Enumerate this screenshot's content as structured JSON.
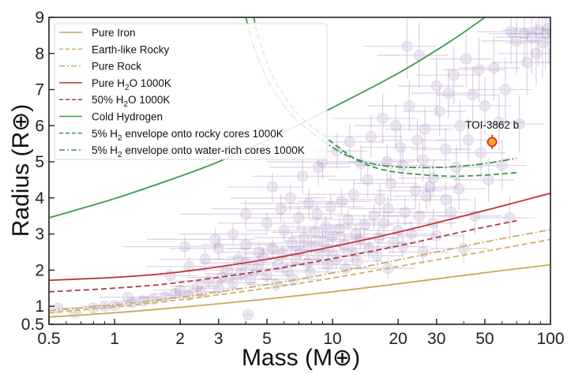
{
  "chart_data": {
    "type": "scatter",
    "title": "",
    "xlabel": "Mass (M⊕)",
    "ylabel": "Radius (R⊕)",
    "xscale": "log",
    "yscale": "linear",
    "xlim": [
      0.5,
      100
    ],
    "ylim": [
      0.5,
      9
    ],
    "grid": false,
    "legend_position": "top-left",
    "xticks": [
      {
        "value": 0.5,
        "label": "0.5"
      },
      {
        "value": 1,
        "label": "1"
      },
      {
        "value": 2,
        "label": "2"
      },
      {
        "value": 3,
        "label": "3"
      },
      {
        "value": 5,
        "label": "5"
      },
      {
        "value": 10,
        "label": "10"
      },
      {
        "value": 20,
        "label": "20"
      },
      {
        "value": 30,
        "label": "30"
      },
      {
        "value": 50,
        "label": "50"
      },
      {
        "value": 100,
        "label": "100"
      }
    ],
    "xminor_ticks": [
      0.6,
      0.7,
      0.8,
      0.9,
      4,
      6,
      7,
      8,
      9,
      40,
      60,
      70,
      80,
      90
    ],
    "yticks": [
      {
        "value": 0.5,
        "label": "0.5"
      },
      {
        "value": 1,
        "label": "1"
      },
      {
        "value": 2,
        "label": "2"
      },
      {
        "value": 3,
        "label": "3"
      },
      {
        "value": 4,
        "label": "4"
      },
      {
        "value": 5,
        "label": "5"
      },
      {
        "value": 6,
        "label": "6"
      },
      {
        "value": 7,
        "label": "7"
      },
      {
        "value": 8,
        "label": "8"
      },
      {
        "value": 9,
        "label": "9"
      }
    ],
    "models": [
      {
        "name": "Pure Iron",
        "legend_main": "Pure Iron",
        "legend_sub": "",
        "legend_tail": "",
        "color": "#c8a85a",
        "dash": "solid",
        "x": [
          0.5,
          1,
          2,
          5,
          10,
          20,
          50,
          100
        ],
        "y": [
          0.7,
          0.82,
          0.97,
          1.2,
          1.4,
          1.62,
          1.93,
          2.15
        ]
      },
      {
        "name": "Earth-like Rocky",
        "legend_main": "Earth-like Rocky",
        "legend_sub": "",
        "legend_tail": "",
        "color": "#d0b060",
        "dash": "dashed",
        "x": [
          0.5,
          1,
          2,
          5,
          10,
          20,
          50,
          100
        ],
        "y": [
          0.82,
          0.98,
          1.18,
          1.5,
          1.78,
          2.1,
          2.52,
          2.85
        ]
      },
      {
        "name": "Pure Rock",
        "legend_main": "Pure Rock",
        "legend_sub": "",
        "legend_tail": "",
        "color": "#c8ad62",
        "dash": "dashdot",
        "x": [
          0.5,
          1,
          2,
          5,
          10,
          20,
          50,
          100
        ],
        "y": [
          0.88,
          1.04,
          1.25,
          1.6,
          1.92,
          2.28,
          2.78,
          3.12
        ]
      },
      {
        "name": "Pure H2O 1000K",
        "legend_main": "Pure H",
        "legend_sub": "2",
        "legend_tail": "O 1000K",
        "color": "#c0343c",
        "dash": "solid",
        "x": [
          0.5,
          1,
          2,
          5,
          10,
          20,
          50,
          100
        ],
        "y": [
          1.72,
          1.8,
          1.95,
          2.3,
          2.65,
          3.05,
          3.65,
          4.13
        ]
      },
      {
        "name": "50% H2O 1000K",
        "legend_main": "50% H",
        "legend_sub": "2",
        "legend_tail": "O 1000K",
        "color": "#b23a48",
        "dash": "dashed",
        "x": [
          0.5,
          1,
          2,
          5,
          10,
          20,
          40,
          70
        ],
        "y": [
          1.4,
          1.5,
          1.66,
          2.0,
          2.32,
          2.67,
          3.07,
          3.37
        ]
      },
      {
        "name": "Cold Hydrogen",
        "legend_main": "Cold Hydrogen",
        "legend_sub": "",
        "legend_tail": "",
        "color": "#3a9a4c",
        "dash": "solid",
        "x": [
          0.5,
          1,
          2,
          3,
          5,
          10,
          20,
          35,
          50
        ],
        "y": [
          3.45,
          3.98,
          4.6,
          5.0,
          5.6,
          6.5,
          7.45,
          8.35,
          9.0
        ]
      },
      {
        "name": "5% H2 envelope onto rocky cores 1000K",
        "legend_main": "5% H",
        "legend_sub": "2",
        "legend_tail": " envelope onto rocky cores 1000K",
        "color": "#3a9a4c",
        "dash": "dashed",
        "x": [
          4.35,
          4.7,
          5.5,
          7,
          9,
          11.5,
          14,
          18,
          25,
          35,
          50,
          70
        ],
        "y": [
          9.0,
          8.2,
          7.2,
          6.3,
          5.75,
          5.25,
          4.95,
          4.75,
          4.65,
          4.6,
          4.63,
          4.7
        ]
      },
      {
        "name": "5% H2 envelope onto water-rich cores 1000K",
        "legend_main": "5% H",
        "legend_sub": "2",
        "legend_tail": " envelope onto water-rich cores 1000K",
        "color": "#3a9a4c",
        "dash": "dashdot",
        "x": [
          4.0,
          4.35,
          5.1,
          6.5,
          8.5,
          11,
          14,
          18,
          25,
          35,
          50,
          70
        ],
        "y": [
          9.0,
          8.2,
          7.2,
          6.3,
          5.7,
          5.25,
          5.0,
          4.88,
          4.84,
          4.86,
          4.95,
          5.1
        ]
      }
    ],
    "highlight": {
      "label": "TOI-3862 b",
      "mass": 54,
      "mass_err": 3,
      "radius": 5.55,
      "radius_err": 0.2,
      "face_color": "#f5a623",
      "edge_color": "#e0201e"
    },
    "background_planets": {
      "color": "#9b7bb8",
      "points": [
        [
          0.66,
          0.82,
          0.05,
          0.05
        ],
        [
          0.8,
          0.95,
          0.15,
          0.1
        ],
        [
          0.9,
          1.0,
          0.2,
          0.1
        ],
        [
          1.0,
          1.02,
          0.2,
          0.1
        ],
        [
          1.2,
          1.1,
          0.2,
          0.1
        ],
        [
          1.35,
          1.15,
          0.3,
          0.1
        ],
        [
          1.5,
          1.2,
          0.3,
          0.15
        ],
        [
          1.7,
          1.25,
          0.4,
          0.1
        ],
        [
          1.9,
          1.35,
          0.4,
          0.15
        ],
        [
          2.0,
          1.45,
          0.5,
          0.15
        ],
        [
          2.2,
          1.3,
          0.5,
          0.15
        ],
        [
          2.4,
          1.55,
          0.6,
          0.2
        ],
        [
          2.5,
          1.4,
          0.6,
          0.15
        ],
        [
          2.7,
          1.7,
          0.8,
          0.2
        ],
        [
          3.0,
          1.5,
          0.8,
          0.2
        ],
        [
          3.1,
          1.8,
          1.0,
          0.2
        ],
        [
          3.3,
          2.0,
          1.2,
          0.2
        ],
        [
          3.5,
          1.65,
          1.0,
          0.2
        ],
        [
          3.8,
          1.9,
          1.2,
          0.2
        ],
        [
          4.0,
          2.2,
          1.5,
          0.25
        ],
        [
          4.2,
          1.75,
          1.2,
          0.2
        ],
        [
          4.5,
          2.05,
          1.5,
          0.2
        ],
        [
          4.8,
          2.35,
          1.5,
          0.25
        ],
        [
          5.0,
          1.85,
          1.5,
          0.2
        ],
        [
          5.3,
          2.6,
          2.0,
          0.25
        ],
        [
          5.6,
          2.15,
          1.8,
          0.2
        ],
        [
          5.9,
          2.45,
          2.0,
          0.25
        ],
        [
          6.2,
          2.0,
          2.0,
          0.2
        ],
        [
          6.5,
          2.75,
          2.5,
          0.3
        ],
        [
          6.8,
          2.3,
          2.0,
          0.25
        ],
        [
          7.1,
          2.55,
          2.5,
          0.25
        ],
        [
          7.4,
          2.9,
          3.0,
          0.3
        ],
        [
          7.7,
          2.2,
          2.0,
          0.25
        ],
        [
          8.0,
          2.65,
          3.0,
          0.25
        ],
        [
          8.3,
          3.05,
          3.0,
          0.3
        ],
        [
          8.6,
          2.4,
          2.5,
          0.25
        ],
        [
          9.0,
          2.8,
          3.0,
          0.3
        ],
        [
          9.3,
          3.2,
          3.0,
          0.3
        ],
        [
          9.6,
          2.55,
          3.0,
          0.25
        ],
        [
          10.0,
          2.95,
          3.5,
          0.3
        ],
        [
          10.4,
          2.3,
          3.0,
          0.25
        ],
        [
          10.8,
          3.15,
          4.0,
          0.3
        ],
        [
          11.3,
          2.7,
          4.0,
          0.3
        ],
        [
          11.8,
          3.4,
          4.0,
          0.3
        ],
        [
          12.3,
          2.5,
          4.0,
          0.3
        ],
        [
          12.8,
          3.0,
          4.0,
          0.3
        ],
        [
          13.4,
          2.85,
          4.0,
          0.3
        ],
        [
          14.0,
          3.25,
          5.0,
          0.3
        ],
        [
          14.7,
          2.6,
          4.0,
          0.3
        ],
        [
          15.5,
          3.5,
          5.0,
          0.35
        ],
        [
          16.3,
          2.9,
          5.0,
          0.3
        ],
        [
          17.2,
          3.3,
          6.0,
          0.35
        ],
        [
          18.0,
          3.7,
          6.0,
          0.4
        ],
        [
          19.0,
          2.75,
          6.0,
          0.3
        ],
        [
          20.0,
          3.1,
          6.0,
          0.35
        ],
        [
          21.5,
          3.6,
          7.0,
          0.4
        ],
        [
          23.0,
          3.0,
          7.0,
          0.35
        ],
        [
          25.0,
          3.5,
          8.0,
          0.4
        ],
        [
          27.0,
          4.05,
          8.0,
          0.4
        ],
        [
          29.0,
          3.3,
          8.0,
          0.4
        ],
        [
          8.5,
          3.55,
          3.0,
          0.3
        ],
        [
          7.0,
          3.45,
          3.0,
          0.3
        ],
        [
          6.0,
          3.1,
          2.0,
          0.3
        ],
        [
          5.0,
          3.3,
          2.0,
          0.3
        ],
        [
          4.0,
          2.7,
          1.5,
          0.3
        ],
        [
          3.5,
          3.0,
          1.5,
          0.3
        ],
        [
          3.0,
          2.6,
          1.2,
          0.3
        ],
        [
          2.6,
          2.3,
          1.0,
          0.3
        ],
        [
          2.2,
          2.1,
          0.8,
          0.25
        ],
        [
          1.8,
          1.85,
          0.6,
          0.2
        ],
        [
          9.8,
          3.75,
          4.0,
          0.35
        ],
        [
          11.0,
          3.9,
          4.0,
          0.35
        ],
        [
          12.5,
          4.1,
          5.0,
          0.4
        ],
        [
          6.4,
          4.0,
          3.0,
          0.4
        ],
        [
          5.3,
          4.3,
          2.0,
          0.4
        ],
        [
          4.0,
          3.55,
          2.0,
          0.4
        ],
        [
          5.8,
          3.7,
          3.0,
          0.4
        ],
        [
          7.8,
          3.85,
          4.0,
          0.4
        ],
        [
          14.5,
          4.5,
          5.0,
          0.5
        ],
        [
          16.5,
          3.95,
          6.0,
          0.45
        ],
        [
          18.5,
          4.4,
          6.0,
          0.5
        ],
        [
          21.0,
          4.9,
          8.0,
          0.5
        ],
        [
          24.0,
          4.2,
          8.0,
          0.5
        ],
        [
          26.0,
          5.05,
          9.0,
          0.6
        ],
        [
          29.0,
          4.55,
          9.0,
          0.5
        ],
        [
          33.0,
          5.35,
          10.0,
          0.6
        ],
        [
          37.0,
          4.85,
          12.0,
          0.6
        ],
        [
          42.0,
          5.6,
          12.0,
          0.6
        ],
        [
          48.0,
          5.25,
          14.0,
          0.7
        ],
        [
          60.0,
          4.9,
          18.0,
          0.7
        ],
        [
          65.0,
          3.45,
          20.0,
          0.6
        ],
        [
          45.0,
          3.5,
          15.0,
          0.5
        ],
        [
          33.0,
          3.95,
          10.0,
          0.5
        ],
        [
          38.0,
          4.25,
          12.0,
          0.6
        ],
        [
          52.0,
          4.5,
          16.0,
          0.6
        ],
        [
          15.0,
          5.7,
          6.0,
          0.6
        ],
        [
          17.0,
          6.2,
          7.0,
          0.7
        ],
        [
          19.5,
          6.0,
          7.0,
          0.6
        ],
        [
          22.5,
          6.55,
          8.0,
          0.7
        ],
        [
          26.5,
          5.9,
          9.0,
          0.6
        ],
        [
          31.0,
          6.4,
          10.0,
          0.7
        ],
        [
          34.0,
          6.9,
          11.0,
          0.7
        ],
        [
          38.5,
          6.0,
          12.0,
          0.7
        ],
        [
          44.0,
          6.85,
          14.0,
          0.8
        ],
        [
          50.0,
          6.55,
          16.0,
          0.8
        ],
        [
          58.0,
          6.1,
          18.0,
          0.8
        ],
        [
          72.0,
          6.05,
          22.0,
          0.8
        ],
        [
          36.0,
          7.4,
          12.0,
          0.8
        ],
        [
          41.0,
          7.85,
          13.0,
          0.8
        ],
        [
          47.0,
          7.55,
          15.0,
          0.9
        ],
        [
          55.0,
          7.6,
          17.0,
          0.9
        ],
        [
          30.0,
          7.1,
          10.0,
          0.8
        ],
        [
          25.0,
          7.95,
          9.0,
          0.9
        ],
        [
          22.0,
          8.2,
          8.0,
          0.9
        ],
        [
          62.0,
          7.0,
          20.0,
          0.9
        ],
        [
          70.0,
          8.35,
          22.0,
          0.9
        ],
        [
          76.0,
          8.55,
          24.0,
          0.9
        ],
        [
          82.0,
          8.45,
          26.0,
          1.0
        ],
        [
          88.0,
          8.65,
          28.0,
          1.0
        ],
        [
          92.0,
          8.3,
          30.0,
          1.0
        ],
        [
          95.0,
          8.55,
          30.0,
          1.0
        ],
        [
          86.0,
          8.0,
          28.0,
          0.9
        ],
        [
          78.0,
          7.75,
          24.0,
          0.9
        ],
        [
          98.0,
          8.7,
          30.0,
          1.0
        ],
        [
          66.0,
          8.6,
          20.0,
          0.9
        ],
        [
          10.5,
          5.3,
          4.0,
          0.5
        ],
        [
          12.0,
          5.55,
          5.0,
          0.5
        ],
        [
          9.0,
          5.0,
          4.0,
          0.5
        ],
        [
          7.3,
          4.6,
          3.0,
          0.5
        ],
        [
          8.6,
          4.85,
          3.5,
          0.5
        ],
        [
          13.5,
          4.95,
          5.0,
          0.5
        ],
        [
          20.5,
          5.4,
          7.0,
          0.6
        ],
        [
          17.8,
          5.0,
          6.0,
          0.5
        ],
        [
          24.5,
          5.6,
          8.0,
          0.6
        ],
        [
          28.0,
          4.3,
          9.0,
          0.5
        ],
        [
          0.55,
          0.95,
          0.1,
          0.05
        ],
        [
          1.15,
          1.25,
          0.3,
          0.1
        ],
        [
          4.1,
          0.77,
          0.2,
          0.05
        ],
        [
          2.9,
          2.85,
          1.5,
          0.3
        ],
        [
          2.1,
          2.65,
          1.0,
          0.3
        ],
        [
          6.6,
          1.75,
          2.0,
          0.2
        ],
        [
          5.5,
          1.6,
          1.5,
          0.2
        ],
        [
          11.5,
          2.05,
          3.0,
          0.2
        ],
        [
          16.0,
          2.4,
          5.0,
          0.3
        ],
        [
          21.0,
          2.65,
          7.0,
          0.3
        ],
        [
          7.9,
          1.95,
          2.5,
          0.2
        ],
        [
          9.5,
          2.15,
          3.0,
          0.25
        ],
        [
          13.0,
          2.25,
          4.0,
          0.25
        ],
        [
          4.6,
          2.5,
          1.5,
          0.25
        ],
        [
          3.7,
          2.3,
          1.2,
          0.25
        ],
        [
          30.0,
          2.95,
          10.0,
          0.4
        ],
        [
          40.0,
          2.6,
          12.0,
          0.4
        ],
        [
          26.0,
          2.5,
          8.0,
          0.35
        ],
        [
          18.0,
          2.05,
          6.0,
          0.3
        ],
        [
          35.0,
          3.6,
          11.0,
          0.45
        ]
      ]
    }
  }
}
